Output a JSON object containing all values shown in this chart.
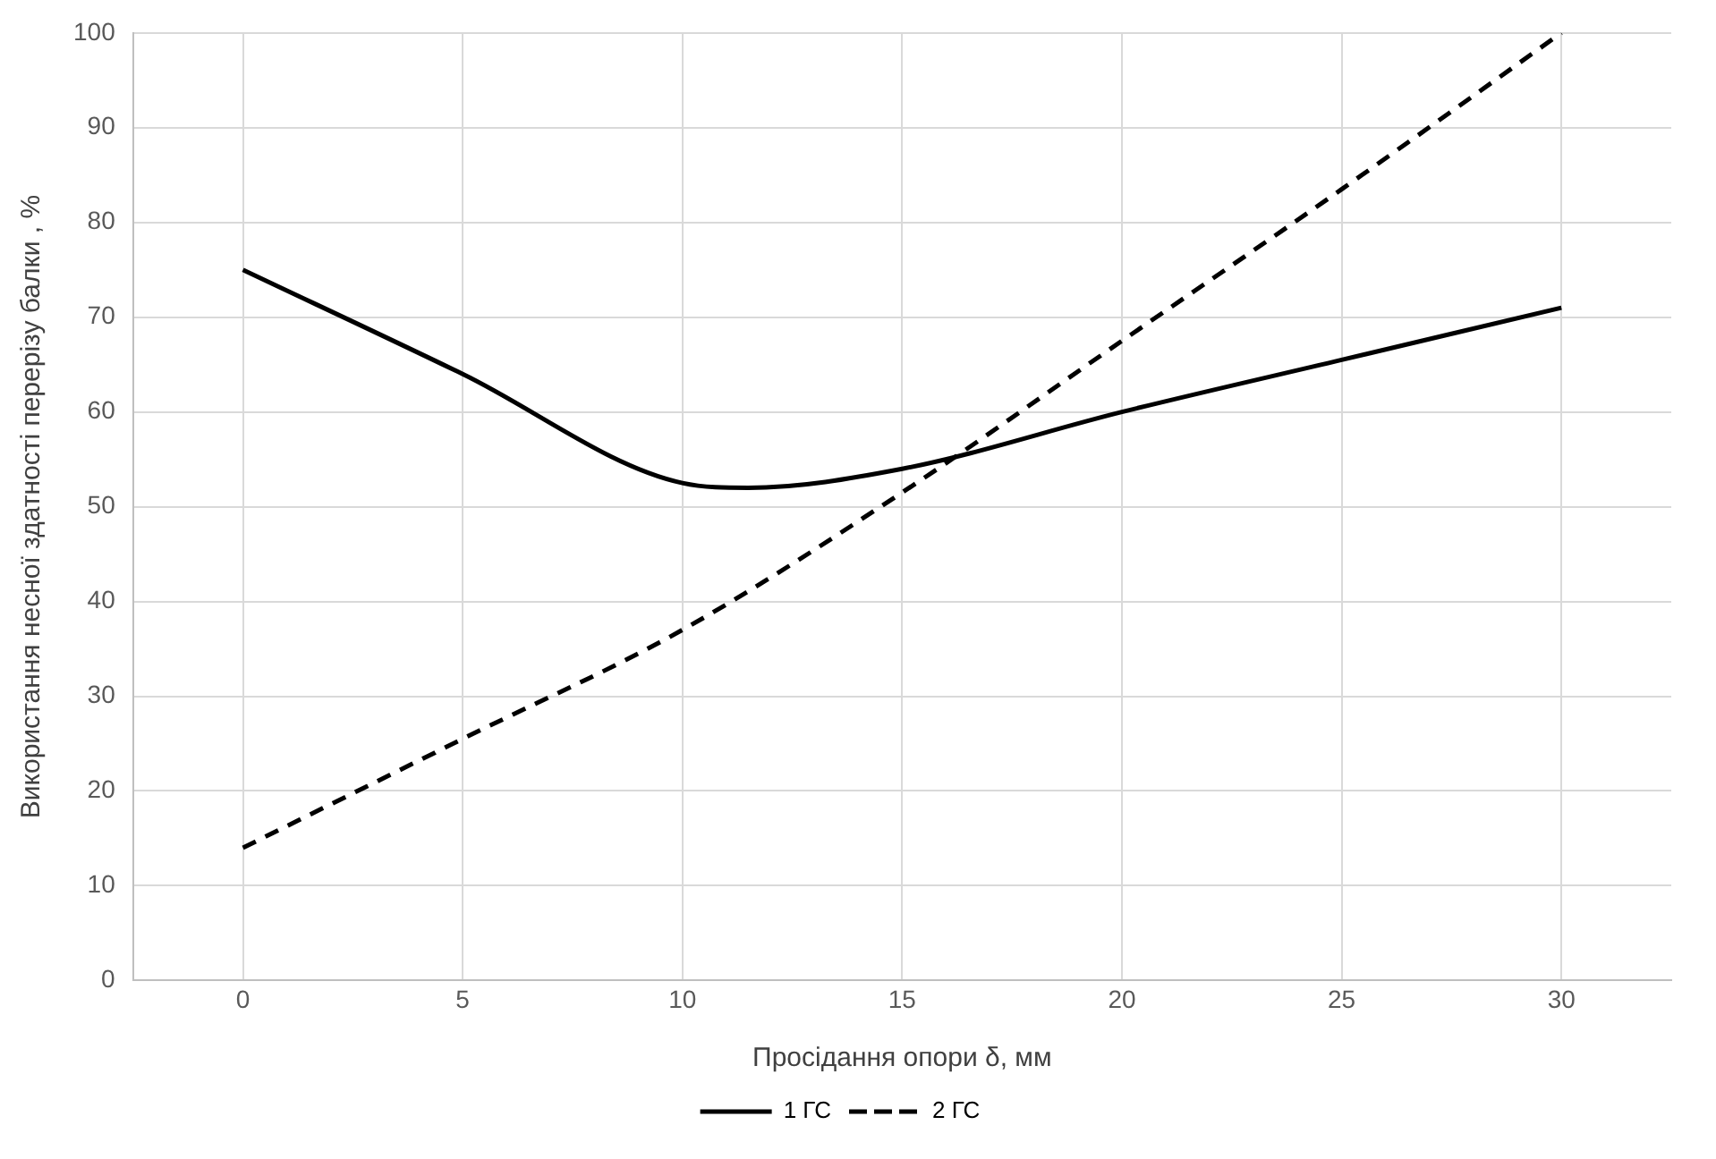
{
  "chart_data": {
    "type": "line",
    "xlabel": "Просідання опори δ, мм",
    "ylabel": "Використання несної здатності перерізу балки , %",
    "xlim": [
      -2.5,
      32.5
    ],
    "xticks": [
      0,
      5,
      10,
      15,
      20,
      25,
      30
    ],
    "ylim": [
      0,
      100
    ],
    "yticks": [
      0,
      10,
      20,
      30,
      40,
      50,
      60,
      70,
      80,
      90,
      100
    ],
    "grid": true,
    "legend": "bottom",
    "marker": "none",
    "series": [
      {
        "name": "1 ГС",
        "color": "#000000",
        "line_style": "solid",
        "x": [
          0,
          5,
          10,
          11.5,
          15,
          20,
          25,
          30
        ],
        "values": [
          75,
          64,
          52.5,
          52,
          54,
          60,
          65.5,
          71
        ]
      },
      {
        "name": "2 ГС",
        "color": "#000000",
        "line_style": "dashed",
        "x": [
          0,
          5,
          10,
          15,
          20,
          25,
          30
        ],
        "values": [
          14,
          25.5,
          37,
          51.5,
          67.5,
          83.5,
          100
        ]
      }
    ]
  }
}
